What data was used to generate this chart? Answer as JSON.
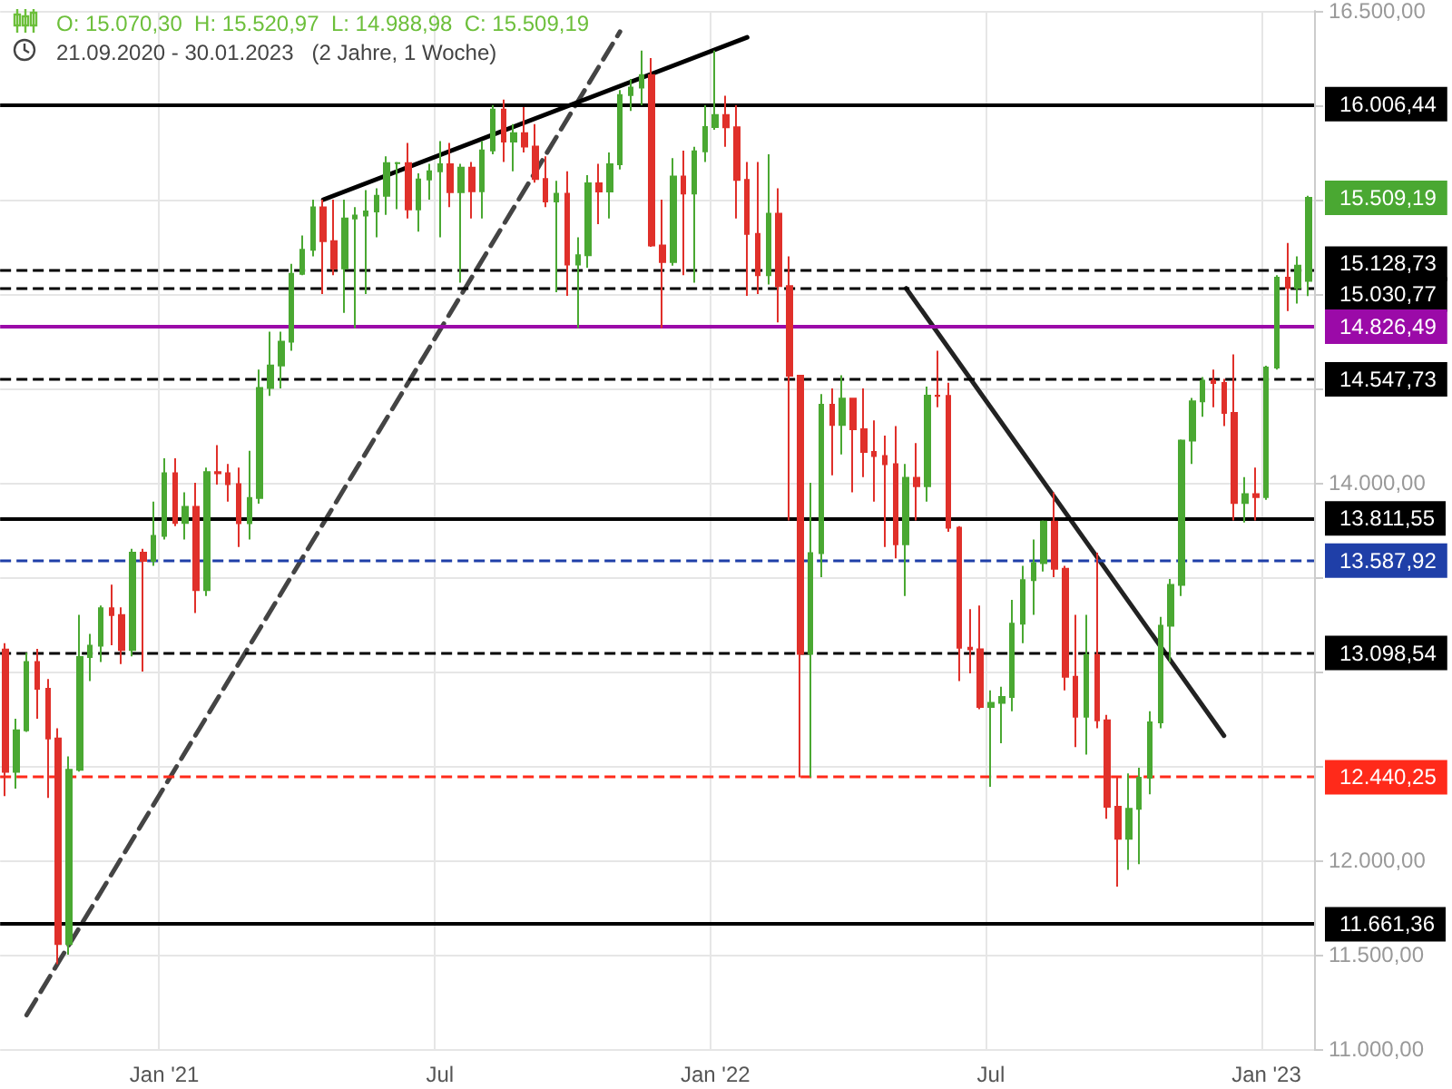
{
  "chart_data": {
    "type": "candlestick",
    "title": "O: 15.070,30  H: 15.520,97  L: 14.988,98  C: 15.509,19",
    "subtitle": "21.09.2020 - 30.01.2023   (2 Jahre, 1 Woche)",
    "categories": [
      null,
      null,
      null,
      null,
      null,
      null,
      null,
      null,
      null,
      null,
      null,
      null,
      null,
      null,
      null,
      "Jan '21",
      null,
      null,
      null,
      null,
      null,
      null,
      null,
      null,
      null,
      null,
      null,
      null,
      null,
      null,
      null,
      null,
      null,
      null,
      null,
      null,
      null,
      null,
      null,
      null,
      null,
      "Jul",
      null,
      null,
      null,
      null,
      null,
      null,
      null,
      null,
      null,
      null,
      null,
      null,
      null,
      null,
      null,
      null,
      null,
      null,
      null,
      null,
      null,
      null,
      null,
      null,
      null,
      "Jan '22",
      null,
      null,
      null,
      null,
      null,
      null,
      null,
      null,
      null,
      null,
      null,
      null,
      null,
      null,
      null,
      null,
      null,
      null,
      null,
      null,
      null,
      null,
      null,
      null,
      null,
      "Jul",
      null,
      null,
      null,
      null,
      null,
      null,
      null,
      null,
      null,
      null,
      null,
      null,
      null,
      null,
      null,
      null,
      null,
      null,
      null,
      null,
      null,
      null,
      null,
      null,
      null,
      "Jan '23",
      null,
      null,
      null,
      null
    ],
    "series": [
      {
        "type": "candlestick",
        "colors": [
          "#e0302a",
          "#4aa832",
          "#4aa832",
          "#e0302a",
          "#e0302a",
          "#e0302a",
          "#4aa832",
          "#4aa832",
          "#4aa832",
          "#4aa832",
          "#e0302a",
          "#e0302a",
          "#4aa832",
          "#e0302a",
          "#4aa832",
          "#4aa832",
          "#e0302a",
          "#4aa832",
          "#e0302a",
          "#4aa832",
          "#e0302a",
          "#e0302a",
          "#e0302a",
          "#4aa832",
          "#4aa832",
          "#4aa832",
          "#4aa832",
          "#4aa832",
          "#4aa832",
          "#4aa832",
          "#e0302a",
          "#e0302a",
          "#4aa832",
          "#4aa832",
          "#4aa832",
          "#4aa832",
          "#4aa832",
          "#4aa832",
          "#e0302a",
          "#4aa832",
          "#4aa832",
          "#4aa832",
          "#e0302a",
          "#4aa832",
          "#e0302a",
          "#4aa832",
          "#4aa832",
          "#e0302a",
          "#4aa832",
          "#e0302a",
          "#e0302a",
          "#e0302a",
          "#4aa832",
          "#e0302a",
          "#4aa832",
          "#4aa832",
          "#e0302a",
          "#4aa832",
          "#4aa832",
          "#4aa832",
          "#4aa832",
          "#e0302a",
          "#e0302a",
          "#4aa832",
          "#e0302a",
          "#4aa832",
          "#4aa832",
          "#4aa832",
          "#e0302a",
          "#e0302a",
          "#e0302a",
          "#e0302a",
          "#4aa832",
          "#e0302a",
          "#e0302a",
          "#e0302a",
          "#4aa832",
          "#4aa832",
          "#e0302a",
          "#4aa832",
          "#e0302a",
          "#e0302a",
          "#e0302a",
          "#e0302a",
          "#e0302a",
          "#4aa832",
          "#e0302a",
          "#4aa832",
          "#e0302a",
          "#e0302a",
          "#e0302a",
          "#e0302a",
          "#e0302a",
          "#4aa832",
          "#4aa832",
          "#4aa832",
          "#4aa832",
          "#4aa832",
          "#4aa832",
          "#e0302a",
          "#e0302a",
          "#e0302a",
          "#4aa832",
          "#e0302a",
          "#e0302a",
          "#e0302a",
          "#4aa832",
          "#4aa832",
          "#4aa832",
          "#4aa832",
          "#4aa832",
          "#4aa832",
          "#4aa832",
          "#4aa832",
          "#e0302a",
          "#e0302a",
          "#e0302a",
          "#4aa832",
          "#e0302a",
          "#4aa832",
          "#4aa832",
          "#e0302a",
          "#4aa832",
          "#4aa832"
        ],
        "ohlc": [
          [
            13116,
            13150,
            12340,
            12469
          ],
          [
            12469,
            12750,
            12380,
            12689
          ],
          [
            12689,
            13100,
            12680,
            13051
          ],
          [
            13051,
            13120,
            12750,
            12909
          ],
          [
            12909,
            12960,
            12330,
            12646
          ],
          [
            12646,
            12700,
            11450,
            11556
          ],
          [
            11556,
            12550,
            11500,
            12480
          ],
          [
            12480,
            13300,
            12470,
            13077
          ],
          [
            13077,
            13200,
            12950,
            13137
          ],
          [
            13137,
            13350,
            13050,
            13335
          ],
          [
            13335,
            13460,
            13140,
            13299
          ],
          [
            13299,
            13340,
            13040,
            13114
          ],
          [
            13114,
            13650,
            13080,
            13630
          ],
          [
            13630,
            13650,
            13000,
            13587
          ],
          [
            13587,
            13900,
            13560,
            13719
          ],
          [
            13719,
            14130,
            13700,
            14050
          ],
          [
            14050,
            14130,
            13770,
            13787
          ],
          [
            13787,
            13950,
            13700,
            13873
          ],
          [
            13873,
            14000,
            13310,
            13432
          ],
          [
            13432,
            14080,
            13400,
            14056
          ],
          [
            14056,
            14200,
            13990,
            14050
          ],
          [
            14050,
            14100,
            13900,
            13993
          ],
          [
            13993,
            14080,
            13660,
            13786
          ],
          [
            13786,
            14170,
            13700,
            13920
          ],
          [
            13920,
            14600,
            13890,
            14502
          ],
          [
            14502,
            14800,
            14460,
            14621
          ],
          [
            14621,
            14800,
            14500,
            14748
          ],
          [
            14748,
            15160,
            14700,
            15107
          ],
          [
            15107,
            15310,
            15100,
            15234
          ],
          [
            15234,
            15500,
            15200,
            15459
          ],
          [
            15459,
            15500,
            15000,
            15280
          ],
          [
            15280,
            15500,
            15100,
            15136
          ],
          [
            15136,
            15500,
            14900,
            15400
          ],
          [
            15400,
            15460,
            14820,
            15416
          ],
          [
            15416,
            15550,
            15000,
            15437
          ],
          [
            15437,
            15560,
            15300,
            15520
          ],
          [
            15520,
            15730,
            15420,
            15693
          ],
          [
            15693,
            15700,
            15450,
            15693
          ],
          [
            15693,
            15800,
            15400,
            15448
          ],
          [
            15448,
            15640,
            15330,
            15607
          ],
          [
            15607,
            15690,
            15500,
            15650
          ],
          [
            15650,
            15810,
            15300,
            15688
          ],
          [
            15688,
            15800,
            15460,
            15540
          ],
          [
            15540,
            15690,
            15060,
            15669
          ],
          [
            15669,
            15700,
            15400,
            15544
          ],
          [
            15544,
            15810,
            15400,
            15761
          ],
          [
            15761,
            16000,
            15740,
            15977
          ],
          [
            15977,
            16030,
            15700,
            15808
          ],
          [
            15808,
            15900,
            15650,
            15852
          ],
          [
            15852,
            15990,
            15750,
            15781
          ],
          [
            15781,
            15900,
            15590,
            15609
          ],
          [
            15609,
            15730,
            15460,
            15490
          ],
          [
            15490,
            15600,
            15010,
            15531
          ],
          [
            15531,
            15650,
            14990,
            15156
          ],
          [
            15156,
            15300,
            14820,
            15206
          ],
          [
            15206,
            15630,
            15140,
            15587
          ],
          [
            15587,
            15690,
            15370,
            15543
          ],
          [
            15543,
            15750,
            15400,
            15688
          ],
          [
            15688,
            16080,
            15660,
            16054
          ],
          [
            16054,
            16140,
            15970,
            16094
          ],
          [
            16094,
            16290,
            16000,
            16160
          ],
          [
            16160,
            16250,
            15250,
            15257
          ],
          [
            15257,
            15500,
            14820,
            15169
          ],
          [
            15169,
            15720,
            15150,
            15623
          ],
          [
            15623,
            15760,
            15100,
            15532
          ],
          [
            15532,
            15780,
            15060,
            15756
          ],
          [
            15756,
            16000,
            15700,
            15885
          ],
          [
            15885,
            16290,
            15870,
            15948
          ],
          [
            15948,
            16050,
            15780,
            15883
          ],
          [
            15883,
            16000,
            15400,
            15604
          ],
          [
            15604,
            15700,
            14990,
            15318
          ],
          [
            15318,
            15700,
            15000,
            15100
          ],
          [
            15100,
            15740,
            15050,
            15425
          ],
          [
            15425,
            15560,
            14850,
            15042
          ],
          [
            15042,
            15200,
            13800,
            14567
          ],
          [
            14567,
            14570,
            12440,
            13094
          ],
          [
            13094,
            14000,
            12440,
            13628
          ],
          [
            13628,
            14470,
            13500,
            14413
          ],
          [
            14413,
            14500,
            14040,
            14306
          ],
          [
            14306,
            14570,
            14150,
            14446
          ],
          [
            14446,
            14450,
            13950,
            14284
          ],
          [
            14284,
            14500,
            14030,
            14163
          ],
          [
            14163,
            14330,
            13900,
            14142
          ],
          [
            14142,
            14250,
            13660,
            14098
          ],
          [
            14098,
            14300,
            13600,
            13674
          ],
          [
            13674,
            14100,
            13400,
            14027
          ],
          [
            14027,
            14210,
            13800,
            13982
          ],
          [
            13982,
            14510,
            13900,
            14462
          ],
          [
            14462,
            14700,
            14400,
            14460
          ],
          [
            14460,
            14530,
            13740,
            13762
          ],
          [
            13762,
            13770,
            12950,
            13126
          ],
          [
            13126,
            13330,
            12990,
            13118
          ],
          [
            13118,
            13350,
            12800,
            12813
          ],
          [
            12813,
            12900,
            12390,
            12834
          ],
          [
            12834,
            12920,
            12620,
            12865
          ],
          [
            12865,
            13380,
            12790,
            13254
          ],
          [
            13254,
            13560,
            13150,
            13484
          ],
          [
            13484,
            13700,
            13300,
            13574
          ],
          [
            13574,
            13800,
            13530,
            13795
          ],
          [
            13795,
            13950,
            13500,
            13545
          ],
          [
            13545,
            13560,
            12900,
            12972
          ],
          [
            12972,
            13300,
            12600,
            12761
          ],
          [
            12761,
            13300,
            12560,
            13088
          ],
          [
            13088,
            13630,
            12700,
            12741
          ],
          [
            12741,
            12770,
            12220,
            12284
          ],
          [
            12284,
            12440,
            11860,
            12114
          ],
          [
            12114,
            12460,
            11950,
            12273
          ],
          [
            12273,
            12490,
            11980,
            12438
          ],
          [
            12438,
            12790,
            12350,
            12731
          ],
          [
            12731,
            13290,
            12700,
            13243
          ],
          [
            13243,
            13490,
            13050,
            13459
          ],
          [
            13459,
            14230,
            13400,
            14224
          ],
          [
            14224,
            14450,
            14100,
            14431
          ],
          [
            14431,
            14560,
            14350,
            14541
          ],
          [
            14541,
            14600,
            14400,
            14529
          ],
          [
            14529,
            14550,
            14300,
            14370
          ],
          [
            14370,
            14680,
            13800,
            13893
          ],
          [
            13893,
            14030,
            13790,
            13940
          ],
          [
            13940,
            14080,
            13800,
            13924
          ],
          [
            13924,
            14620,
            13910,
            14610
          ],
          [
            14610,
            15100,
            14600,
            15086
          ],
          [
            15086,
            15270,
            14910,
            15033
          ],
          [
            15033,
            15200,
            14950,
            15150
          ],
          [
            15070.3,
            15520.97,
            14988.98,
            15509.19
          ]
        ],
        "value_labels": [
          null,
          null,
          null,
          null,
          null,
          null,
          null,
          null,
          null,
          null,
          null,
          null,
          null,
          null,
          null,
          null,
          null,
          null,
          null,
          null,
          null,
          null,
          null,
          null,
          null,
          null,
          null,
          null,
          null,
          null,
          null,
          null,
          null,
          null,
          null,
          null,
          null,
          null,
          null,
          null,
          null,
          null,
          null,
          null,
          null,
          null,
          null,
          null,
          null,
          null,
          null,
          null,
          null,
          null,
          null,
          null,
          null,
          null,
          null,
          null,
          null,
          null,
          null,
          null,
          null,
          null,
          null,
          null,
          null,
          null,
          null,
          null,
          null,
          null,
          null,
          null,
          null,
          null,
          null,
          null,
          null,
          null,
          null,
          null,
          null,
          null,
          null,
          null,
          null,
          null,
          null,
          null,
          null,
          null,
          null,
          null,
          null,
          null,
          null,
          null,
          null,
          null,
          null,
          null,
          null,
          null,
          null,
          null,
          null,
          null,
          null,
          null,
          null,
          null,
          null,
          null,
          null,
          null,
          null,
          null,
          null,
          null,
          null,
          "15.509,19"
        ]
      },
      {
        "type": "line",
        "color": "#444444",
        "line_style": "dashed",
        "values": [
          null,
          null,
          11180,
          null,
          null,
          null,
          null,
          null,
          null,
          null,
          null,
          null,
          null,
          null,
          null,
          null,
          null,
          null,
          null,
          null,
          null,
          null,
          null,
          null,
          null,
          null,
          null,
          null,
          null,
          null,
          null,
          null,
          null,
          null,
          null,
          null,
          null,
          null,
          null,
          null,
          null,
          null,
          null,
          null,
          null,
          null,
          null,
          null,
          null,
          null,
          null,
          null,
          null,
          null,
          null,
          null,
          null,
          null,
          16390,
          null,
          null,
          null,
          null,
          null,
          null,
          null,
          null,
          null,
          null,
          null,
          null,
          null,
          null,
          null,
          null,
          null,
          null,
          null,
          null,
          null,
          null,
          null,
          null,
          null,
          null,
          null,
          null,
          null,
          null,
          null,
          null,
          null,
          null,
          null,
          null,
          null,
          null,
          null,
          null,
          null,
          null,
          null,
          null,
          null,
          null,
          null,
          null,
          null,
          null,
          null,
          null,
          null,
          null,
          null,
          null,
          null,
          null,
          null,
          null,
          null,
          null,
          null,
          null,
          null
        ]
      },
      {
        "type": "line",
        "color": "#000000",
        "line_style": "solid",
        "values": [
          null,
          null,
          null,
          null,
          null,
          null,
          null,
          null,
          null,
          null,
          null,
          null,
          null,
          null,
          null,
          null,
          null,
          null,
          null,
          null,
          null,
          null,
          null,
          null,
          null,
          null,
          null,
          null,
          null,
          null,
          15500,
          null,
          null,
          null,
          null,
          null,
          null,
          null,
          null,
          null,
          null,
          null,
          null,
          null,
          null,
          null,
          null,
          null,
          null,
          null,
          null,
          null,
          null,
          null,
          null,
          null,
          null,
          null,
          null,
          null,
          null,
          null,
          null,
          null,
          null,
          null,
          null,
          null,
          null,
          null,
          16360,
          null,
          null,
          null,
          null,
          null,
          null,
          null,
          null,
          null,
          null,
          null,
          null,
          null,
          null,
          null,
          null,
          null,
          null,
          null,
          null,
          null,
          null,
          null,
          null,
          null,
          null,
          null,
          null,
          null,
          null,
          null,
          null,
          null,
          null,
          null,
          null,
          null,
          null,
          null,
          null,
          null,
          null,
          null,
          null,
          null,
          null,
          null,
          null,
          null,
          null,
          null,
          null,
          null
        ]
      },
      {
        "type": "line",
        "color": "#222222",
        "line_style": "solid",
        "values": [
          null,
          null,
          null,
          null,
          null,
          null,
          null,
          null,
          null,
          null,
          null,
          null,
          null,
          null,
          null,
          null,
          null,
          null,
          null,
          null,
          null,
          null,
          null,
          null,
          null,
          null,
          null,
          null,
          null,
          null,
          null,
          null,
          null,
          null,
          null,
          null,
          null,
          null,
          null,
          null,
          null,
          null,
          null,
          null,
          null,
          null,
          null,
          null,
          null,
          null,
          null,
          null,
          null,
          null,
          null,
          null,
          null,
          null,
          null,
          null,
          null,
          null,
          null,
          null,
          null,
          null,
          null,
          null,
          null,
          null,
          null,
          null,
          null,
          null,
          null,
          null,
          null,
          null,
          null,
          null,
          null,
          null,
          null,
          null,
          null,
          15030,
          null,
          null,
          null,
          null,
          null,
          null,
          null,
          null,
          null,
          null,
          null,
          null,
          null,
          null,
          null,
          null,
          null,
          null,
          null,
          null,
          null,
          null,
          null,
          null,
          null,
          null,
          null,
          null,
          null,
          12660,
          null,
          null,
          null,
          null,
          null,
          null,
          null,
          null
        ]
      }
    ],
    "ylim": [
      11000,
      16500
    ],
    "yticks": [
      {
        "value": 11000,
        "label": "11.000,00"
      },
      {
        "value": 11500,
        "label": "11.500,00"
      },
      {
        "value": 12000,
        "label": "12.000,00"
      },
      {
        "value": 12500,
        "label": null
      },
      {
        "value": 13000,
        "label": null
      },
      {
        "value": 13500,
        "label": null
      },
      {
        "value": 14000,
        "label": "14.000,00"
      },
      {
        "value": 14500,
        "label": null
      },
      {
        "value": 15000,
        "label": null
      },
      {
        "value": 15500,
        "label": null
      },
      {
        "value": 16000,
        "label": null
      },
      {
        "value": 16500,
        "label": "16.500,00"
      }
    ],
    "ref_lines": [
      {
        "axis": "y",
        "value": 16006.44,
        "label": "16.006,44",
        "color": "#000000",
        "line_style": "solid"
      },
      {
        "axis": "y",
        "value": 15128.73,
        "label": "15.128,73",
        "color": "#000000",
        "line_style": "dashed"
      },
      {
        "axis": "y",
        "value": 15030.77,
        "label": "15.030,77",
        "color": "#000000",
        "line_style": "dashed"
      },
      {
        "axis": "y",
        "value": 14826.49,
        "label": "14.826,49",
        "color": "#9b0aa8",
        "line_style": "solid"
      },
      {
        "axis": "y",
        "value": 14547.73,
        "label": "14.547,73",
        "color": "#000000",
        "line_style": "dashed"
      },
      {
        "axis": "y",
        "value": 13811.55,
        "label": "13.811,55",
        "color": "#000000",
        "line_style": "solid"
      },
      {
        "axis": "y",
        "value": 13587.92,
        "label": "13.587,92",
        "color": "#1f3fa8",
        "line_style": "dashed"
      },
      {
        "axis": "y",
        "value": 13098.54,
        "label": "13.098,54",
        "color": "#000000",
        "line_style": "dashed"
      },
      {
        "axis": "y",
        "value": 12440.25,
        "label": "12.440,25",
        "color": "#ff2a1a",
        "line_style": "dashed"
      },
      {
        "axis": "y",
        "value": 11661.36,
        "label": "11.661,36",
        "color": "#000000",
        "line_style": "solid"
      }
    ],
    "grid": true
  }
}
